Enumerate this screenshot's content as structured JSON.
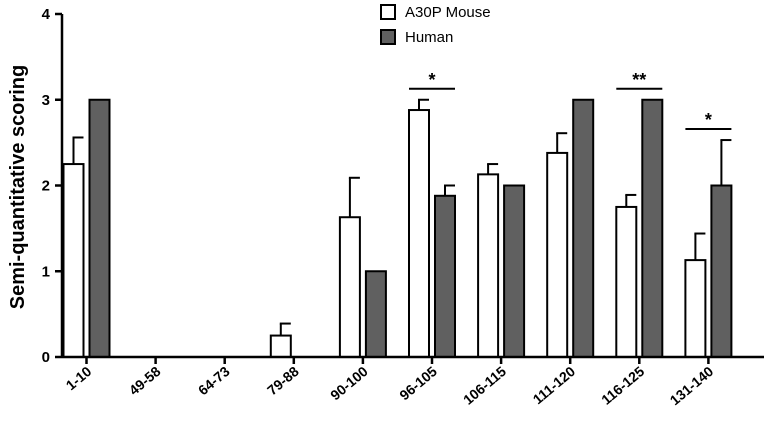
{
  "chart_data": {
    "type": "bar",
    "title": "",
    "xlabel": "",
    "ylabel": "Semi-quantitative scoring",
    "ylim": [
      0,
      4
    ],
    "yticks": [
      0,
      1,
      2,
      3,
      4
    ],
    "categories": [
      "1-10",
      "49-58",
      "64-73",
      "79-88",
      "90-100",
      "96-105",
      "106-115",
      "111-120",
      "116-125",
      "131-140"
    ],
    "series": [
      {
        "name": "A30P Mouse",
        "color": "#ffffff",
        "values": [
          2.25,
          0,
          0,
          0.25,
          1.63,
          2.88,
          2.13,
          2.38,
          1.75,
          1.13
        ],
        "errors": [
          0.31,
          0,
          0,
          0.14,
          0.46,
          0.12,
          0.12,
          0.23,
          0.14,
          0.31
        ]
      },
      {
        "name": "Human",
        "color": "#606060",
        "values": [
          3,
          0,
          0,
          0,
          1,
          1.88,
          2,
          3,
          3,
          2
        ],
        "errors": [
          0,
          0,
          0,
          0,
          0,
          0.12,
          0,
          0,
          0,
          0.53
        ]
      }
    ],
    "significance": [
      {
        "category_index": 5,
        "label": "*"
      },
      {
        "category_index": 8,
        "label": "**"
      },
      {
        "category_index": 9,
        "label": "*"
      }
    ],
    "legend_position": "top-center"
  }
}
